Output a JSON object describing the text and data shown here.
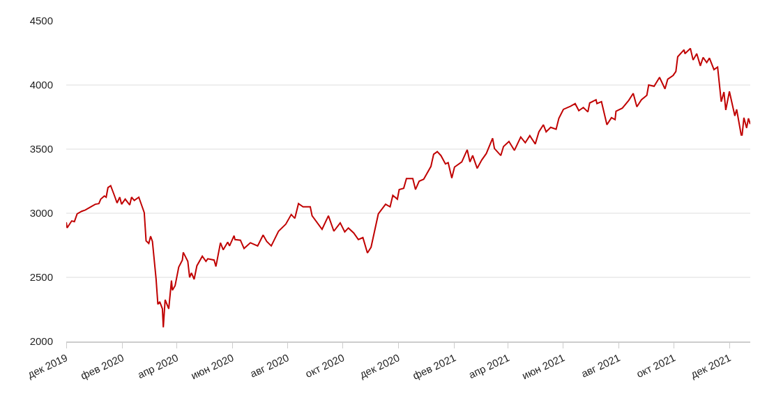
{
  "chart_data": {
    "type": "line",
    "x": [
      "2019-12-01",
      "2019-12-02",
      "2019-12-07",
      "2019-12-10",
      "2019-12-13",
      "2019-12-18",
      "2019-12-22",
      "2019-12-28",
      "2020-01-02",
      "2020-01-06",
      "2020-01-08",
      "2020-01-12",
      "2020-01-14",
      "2020-01-16",
      "2020-01-19",
      "2020-01-23",
      "2020-01-26",
      "2020-01-29",
      "2020-01-31",
      "2020-02-04",
      "2020-02-09",
      "2020-02-11",
      "2020-02-14",
      "2020-02-19",
      "2020-02-23",
      "2020-02-25",
      "2020-02-27",
      "2020-03-01",
      "2020-03-03",
      "2020-03-05",
      "2020-03-09",
      "2020-03-11",
      "2020-03-13",
      "2020-03-16",
      "2020-03-17",
      "2020-03-19",
      "2020-03-23",
      "2020-03-26",
      "2020-03-27",
      "2020-03-30",
      "2020-04-03",
      "2020-04-07",
      "2020-04-08",
      "2020-04-13",
      "2020-04-15",
      "2020-04-17",
      "2020-04-20",
      "2020-04-23",
      "2020-04-29",
      "2020-05-03",
      "2020-05-05",
      "2020-05-12",
      "2020-05-14",
      "2020-05-19",
      "2020-05-22",
      "2020-05-27",
      "2020-05-29",
      "2020-06-03",
      "2020-06-04",
      "2020-06-10",
      "2020-06-14",
      "2020-06-21",
      "2020-06-29",
      "2020-07-05",
      "2020-07-09",
      "2020-07-14",
      "2020-07-22",
      "2020-07-30",
      "2020-08-05",
      "2020-08-09",
      "2020-08-13",
      "2020-08-18",
      "2020-08-26",
      "2020-08-28",
      "2020-09-08",
      "2020-09-15",
      "2020-09-21",
      "2020-09-28",
      "2020-10-03",
      "2020-10-07",
      "2020-10-13",
      "2020-10-18",
      "2020-10-23",
      "2020-10-28",
      "2020-11-01",
      "2020-11-09",
      "2020-11-17",
      "2020-11-22",
      "2020-11-25",
      "2020-11-30",
      "2020-12-02",
      "2020-12-07",
      "2020-12-10",
      "2020-12-17",
      "2020-12-20",
      "2020-12-24",
      "2020-12-29",
      "2021-01-06",
      "2021-01-09",
      "2021-01-13",
      "2021-01-17",
      "2021-01-22",
      "2021-01-25",
      "2021-01-29",
      "2021-02-01",
      "2021-02-09",
      "2021-02-15",
      "2021-02-18",
      "2021-02-21",
      "2021-02-26",
      "2021-03-03",
      "2021-03-08",
      "2021-03-15",
      "2021-03-17",
      "2021-03-24",
      "2021-03-27",
      "2021-04-02",
      "2021-04-08",
      "2021-04-15",
      "2021-04-20",
      "2021-04-25",
      "2021-05-01",
      "2021-05-05",
      "2021-05-10",
      "2021-05-13",
      "2021-05-18",
      "2021-05-24",
      "2021-05-27",
      "2021-06-01",
      "2021-06-09",
      "2021-06-14",
      "2021-06-18",
      "2021-06-23",
      "2021-06-28",
      "2021-06-30",
      "2021-07-07",
      "2021-07-08",
      "2021-07-13",
      "2021-07-19",
      "2021-07-24",
      "2021-07-28",
      "2021-07-29",
      "2021-08-05",
      "2021-08-12",
      "2021-08-17",
      "2021-08-21",
      "2021-08-26",
      "2021-09-01",
      "2021-09-03",
      "2021-09-09",
      "2021-09-15",
      "2021-09-21",
      "2021-09-24",
      "2021-09-30",
      "2021-10-03",
      "2021-10-05",
      "2021-10-12",
      "2021-10-13",
      "2021-10-19",
      "2021-10-22",
      "2021-10-26",
      "2021-10-30",
      "2021-11-02",
      "2021-11-06",
      "2021-11-09",
      "2021-11-14",
      "2021-11-18",
      "2021-11-22",
      "2021-11-25",
      "2021-11-27",
      "2021-12-01",
      "2021-12-07",
      "2021-12-09",
      "2021-12-14",
      "2021-12-15",
      "2021-12-17",
      "2021-12-20",
      "2021-12-22",
      "2021-12-24"
    ],
    "series": [
      {
        "color": "#c00000",
        "values": [
          2930,
          2886,
          2940,
          2935,
          2995,
          3015,
          3025,
          3050,
          3070,
          3075,
          3110,
          3135,
          3125,
          3200,
          3215,
          3140,
          3080,
          3125,
          3070,
          3110,
          3065,
          3125,
          3100,
          3125,
          3045,
          3005,
          2785,
          2765,
          2820,
          2780,
          2490,
          2290,
          2310,
          2255,
          2110,
          2325,
          2255,
          2475,
          2400,
          2435,
          2580,
          2635,
          2695,
          2625,
          2500,
          2535,
          2485,
          2590,
          2665,
          2625,
          2645,
          2635,
          2585,
          2770,
          2715,
          2775,
          2745,
          2825,
          2795,
          2790,
          2725,
          2770,
          2745,
          2830,
          2780,
          2745,
          2860,
          2915,
          2990,
          2960,
          3075,
          3050,
          3050,
          2980,
          2875,
          2980,
          2860,
          2925,
          2855,
          2885,
          2845,
          2795,
          2810,
          2690,
          2735,
          2995,
          3070,
          3050,
          3140,
          3110,
          3185,
          3195,
          3270,
          3270,
          3185,
          3250,
          3265,
          3365,
          3460,
          3480,
          3450,
          3385,
          3395,
          3275,
          3360,
          3400,
          3495,
          3400,
          3450,
          3350,
          3415,
          3465,
          3585,
          3505,
          3450,
          3520,
          3560,
          3490,
          3595,
          3550,
          3605,
          3540,
          3635,
          3690,
          3635,
          3670,
          3655,
          3740,
          3810,
          3835,
          3855,
          3800,
          3825,
          3790,
          3860,
          3885,
          3855,
          3870,
          3690,
          3745,
          3730,
          3795,
          3820,
          3880,
          3935,
          3830,
          3885,
          3920,
          4000,
          3990,
          4060,
          3970,
          4045,
          4075,
          4105,
          4220,
          4275,
          4245,
          4285,
          4195,
          4245,
          4150,
          4215,
          4175,
          4210,
          4120,
          4140,
          3870,
          3945,
          3805,
          3950,
          3760,
          3810,
          3610,
          3610,
          3745,
          3665,
          3740,
          3695
        ]
      }
    ],
    "xlim": [
      "2019-12-01",
      "2021-12-24"
    ],
    "xticks": [
      {
        "value": "2019-12-01",
        "label": "дек 2019"
      },
      {
        "value": "2020-02-01",
        "label": "фев 2020"
      },
      {
        "value": "2020-04-01",
        "label": "апр 2020"
      },
      {
        "value": "2020-06-01",
        "label": "июн 2020"
      },
      {
        "value": "2020-08-01",
        "label": "авг 2020"
      },
      {
        "value": "2020-10-01",
        "label": "окт 2020"
      },
      {
        "value": "2020-12-01",
        "label": "дек 2020"
      },
      {
        "value": "2021-02-01",
        "label": "фев 2021"
      },
      {
        "value": "2021-04-01",
        "label": "апр 2021"
      },
      {
        "value": "2021-06-01",
        "label": "июн 2021"
      },
      {
        "value": "2021-08-01",
        "label": "авг 2021"
      },
      {
        "value": "2021-10-01",
        "label": "окт 2021"
      },
      {
        "value": "2021-12-01",
        "label": "дек 2021"
      }
    ],
    "ylim": [
      2000,
      4500
    ],
    "yticks": [
      2000,
      2500,
      3000,
      3500,
      4000,
      4500
    ],
    "grid": "y",
    "marker": "none",
    "line_style": "solid"
  }
}
